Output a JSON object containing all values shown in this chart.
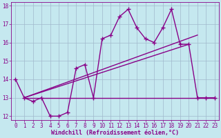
{
  "xlabel": "Windchill (Refroidissement éolien,°C)",
  "background_color": "#c5e8ef",
  "grid_color": "#a0b8cc",
  "line_color": "#880088",
  "x_values": [
    0,
    1,
    2,
    3,
    4,
    5,
    6,
    7,
    8,
    9,
    10,
    11,
    12,
    13,
    14,
    15,
    16,
    17,
    18,
    19,
    20,
    21,
    22,
    23
  ],
  "y_data": [
    14,
    13,
    12.8,
    13,
    12,
    12,
    12.2,
    14.6,
    14.8,
    13,
    16.2,
    16.4,
    17.4,
    17.8,
    16.8,
    16.2,
    16,
    16.8,
    17.8,
    15.9,
    15.9,
    13,
    13,
    13
  ],
  "ylim": [
    12,
    18
  ],
  "xlim": [
    -0.5,
    23.5
  ],
  "yticks": [
    12,
    13,
    14,
    15,
    16,
    17,
    18
  ],
  "xticks": [
    0,
    1,
    2,
    3,
    4,
    5,
    6,
    7,
    8,
    9,
    10,
    11,
    12,
    13,
    14,
    15,
    16,
    17,
    18,
    19,
    20,
    21,
    22,
    23
  ],
  "line1_x": [
    1,
    20
  ],
  "line1_y": [
    13,
    15.9
  ],
  "line2_x": [
    1,
    21
  ],
  "line2_y": [
    13,
    16.4
  ],
  "flat_line_x": [
    1,
    23
  ],
  "flat_line_y": [
    13,
    13
  ]
}
